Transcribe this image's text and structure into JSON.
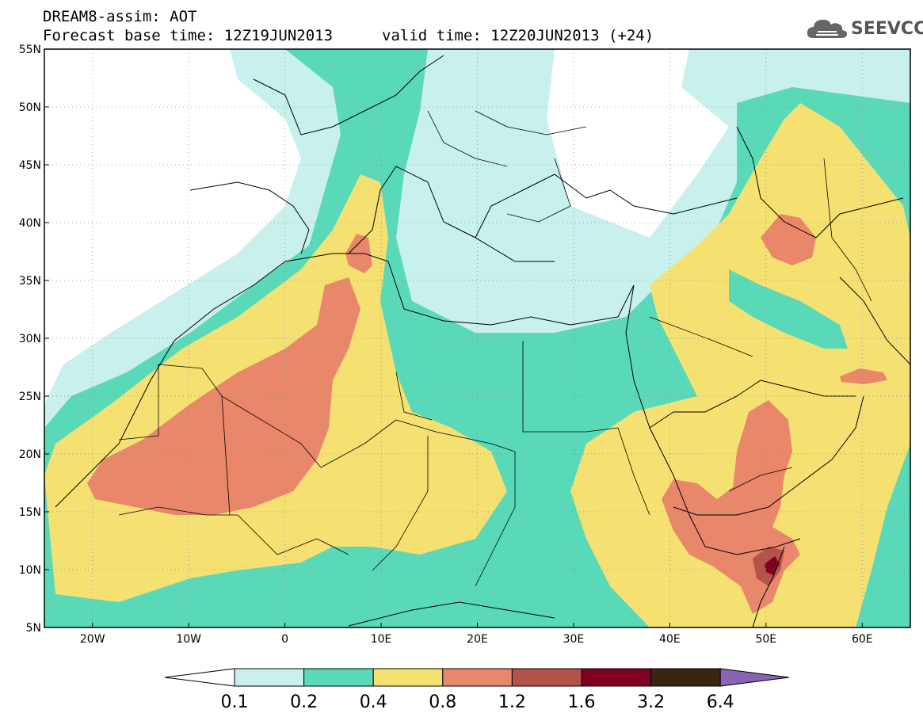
{
  "title": {
    "line1": "DREAM8-assim: AOT",
    "line2": "Forecast base time: 12Z19JUN2013",
    "valid": "valid time: 12Z20JUN2013 (+24)"
  },
  "logo": {
    "text": "SEEVCCC"
  },
  "axes": {
    "lat_labels": [
      "55N",
      "50N",
      "45N",
      "40N",
      "35N",
      "30N",
      "25N",
      "20N",
      "15N",
      "10N",
      "5N"
    ],
    "lon_labels": [
      "20W",
      "10W",
      "0",
      "10E",
      "20E",
      "30E",
      "40E",
      "50E",
      "60E"
    ],
    "lat_range": [
      5,
      55
    ],
    "lon_range": [
      -25,
      65
    ]
  },
  "colorbar": {
    "labels": [
      "0.1",
      "0.2",
      "0.4",
      "0.8",
      "1.2",
      "1.6",
      "3.2",
      "6.4"
    ],
    "colors": [
      "#ffffff",
      "#c8f0ec",
      "#5ad9b9",
      "#f5e171",
      "#e9876b",
      "#b5524a",
      "#800022",
      "#3a2512",
      "#8a64b4"
    ]
  },
  "palette": {
    "c01": "#c8f0ec",
    "c02": "#5ad9b9",
    "c04": "#f5e171",
    "c08": "#e9876b",
    "c12": "#b5524a",
    "c16": "#800022"
  }
}
